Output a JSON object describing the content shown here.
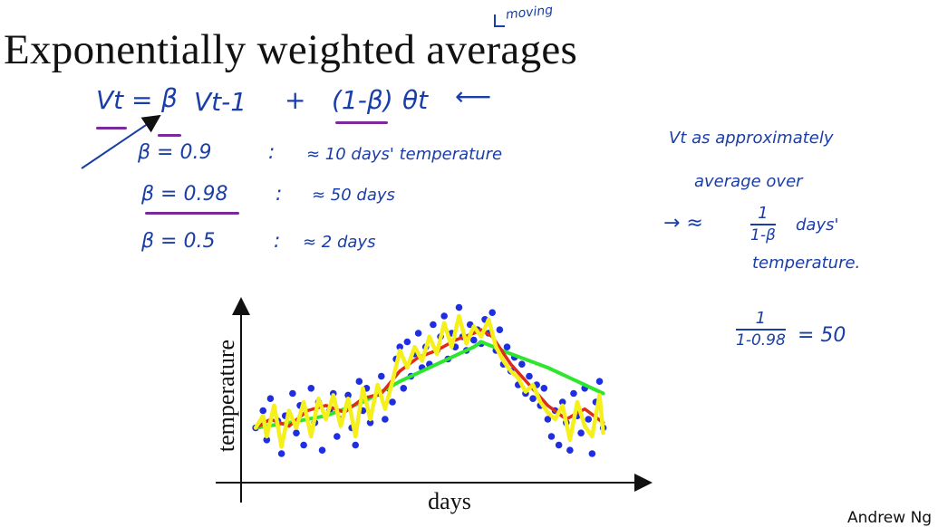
{
  "slide": {
    "title": "Exponentially weighted averages",
    "moving_annotation": "moving",
    "footer": "Andrew Ng"
  },
  "notes": {
    "equation": {
      "lhs": "Vt =",
      "beta": "β",
      "prev": "Vt-1",
      "plus": "+",
      "one_minus_beta": "(1-β)",
      "theta": "θt",
      "arrow": "⟵"
    },
    "betas": [
      {
        "beta": "β = 0.9",
        "colon": ":",
        "approx": "≈ 10 days' temperature"
      },
      {
        "beta": "β = 0.98",
        "colon": ":",
        "approx": "≈ 50 days"
      },
      {
        "beta": "β = 0.5",
        "colon": ":",
        "approx": "≈ 2 days"
      }
    ],
    "side": {
      "line1": "Vt as approximately",
      "line2": "average over",
      "arrow": "→ ≈",
      "frac_num": "1",
      "frac_den": "1-β",
      "days": "days'",
      "line4": "temperature.",
      "calc_num": "1",
      "calc_den": "1-0.98",
      "calc_result": "= 50"
    }
  },
  "chart_data": {
    "type": "scatter",
    "title": "",
    "xlabel": "days",
    "ylabel": "temperature",
    "grid": false,
    "legend": "none",
    "xlim": [
      0,
      100
    ],
    "ylim": [
      0,
      100
    ],
    "series": [
      {
        "style": "markers",
        "color": "#1f2ee0",
        "points": [
          [
            1,
            25
          ],
          [
            3,
            35
          ],
          [
            4,
            18
          ],
          [
            5,
            42
          ],
          [
            7,
            29
          ],
          [
            8,
            10
          ],
          [
            9,
            32
          ],
          [
            11,
            45
          ],
          [
            12,
            22
          ],
          [
            13,
            38
          ],
          [
            14,
            15
          ],
          [
            16,
            48
          ],
          [
            17,
            28
          ],
          [
            18,
            40
          ],
          [
            19,
            12
          ],
          [
            21,
            35
          ],
          [
            22,
            45
          ],
          [
            23,
            20
          ],
          [
            24,
            30
          ],
          [
            26,
            44
          ],
          [
            27,
            25
          ],
          [
            28,
            15
          ],
          [
            29,
            52
          ],
          [
            30,
            35
          ],
          [
            31,
            48
          ],
          [
            32,
            28
          ],
          [
            34,
            45
          ],
          [
            35,
            55
          ],
          [
            36,
            30
          ],
          [
            37,
            48
          ],
          [
            38,
            40
          ],
          [
            39,
            65
          ],
          [
            40,
            72
          ],
          [
            41,
            48
          ],
          [
            42,
            75
          ],
          [
            43,
            55
          ],
          [
            44,
            68
          ],
          [
            45,
            80
          ],
          [
            46,
            60
          ],
          [
            47,
            72
          ],
          [
            48,
            62
          ],
          [
            49,
            85
          ],
          [
            50,
            70
          ],
          [
            51,
            78
          ],
          [
            52,
            90
          ],
          [
            53,
            65
          ],
          [
            54,
            80
          ],
          [
            55,
            72
          ],
          [
            56,
            95
          ],
          [
            57,
            78
          ],
          [
            58,
            70
          ],
          [
            59,
            85
          ],
          [
            60,
            76
          ],
          [
            61,
            82
          ],
          [
            62,
            74
          ],
          [
            63,
            88
          ],
          [
            64,
            80
          ],
          [
            65,
            92
          ],
          [
            66,
            70
          ],
          [
            67,
            82
          ],
          [
            68,
            62
          ],
          [
            69,
            72
          ],
          [
            70,
            58
          ],
          [
            71,
            66
          ],
          [
            72,
            50
          ],
          [
            73,
            62
          ],
          [
            74,
            45
          ],
          [
            75,
            55
          ],
          [
            76,
            42
          ],
          [
            77,
            50
          ],
          [
            78,
            38
          ],
          [
            79,
            48
          ],
          [
            80,
            30
          ],
          [
            81,
            20
          ],
          [
            82,
            35
          ],
          [
            83,
            15
          ],
          [
            84,
            40
          ],
          [
            85,
            28
          ],
          [
            86,
            12
          ],
          [
            87,
            45
          ],
          [
            88,
            32
          ],
          [
            89,
            22
          ],
          [
            90,
            48
          ],
          [
            91,
            30
          ],
          [
            92,
            10
          ],
          [
            93,
            40
          ],
          [
            94,
            52
          ],
          [
            95,
            25
          ]
        ]
      },
      {
        "name": "",
        "style": "line",
        "color": "#2ee62e",
        "points": [
          [
            1,
            25
          ],
          [
            10,
            28
          ],
          [
            20,
            32
          ],
          [
            30,
            40
          ],
          [
            40,
            52
          ],
          [
            50,
            62
          ],
          [
            60,
            72
          ],
          [
            62,
            75
          ],
          [
            70,
            68
          ],
          [
            80,
            60
          ],
          [
            90,
            50
          ],
          [
            95,
            45
          ]
        ]
      },
      {
        "name": "",
        "style": "line",
        "color": "#e02a1a",
        "points": [
          [
            1,
            25
          ],
          [
            5,
            30
          ],
          [
            10,
            26
          ],
          [
            15,
            35
          ],
          [
            20,
            38
          ],
          [
            25,
            34
          ],
          [
            30,
            42
          ],
          [
            35,
            45
          ],
          [
            40,
            58
          ],
          [
            45,
            66
          ],
          [
            50,
            70
          ],
          [
            55,
            76
          ],
          [
            60,
            80
          ],
          [
            62,
            82
          ],
          [
            65,
            78
          ],
          [
            70,
            62
          ],
          [
            75,
            50
          ],
          [
            80,
            38
          ],
          [
            85,
            30
          ],
          [
            90,
            36
          ],
          [
            95,
            28
          ]
        ]
      },
      {
        "name": "",
        "style": "line",
        "color": "#f5ef1a",
        "points": [
          [
            1,
            25
          ],
          [
            3,
            32
          ],
          [
            4,
            20
          ],
          [
            6,
            38
          ],
          [
            8,
            14
          ],
          [
            10,
            35
          ],
          [
            12,
            25
          ],
          [
            14,
            40
          ],
          [
            16,
            20
          ],
          [
            18,
            42
          ],
          [
            20,
            30
          ],
          [
            22,
            44
          ],
          [
            24,
            26
          ],
          [
            26,
            42
          ],
          [
            28,
            20
          ],
          [
            30,
            48
          ],
          [
            32,
            30
          ],
          [
            34,
            50
          ],
          [
            36,
            36
          ],
          [
            38,
            52
          ],
          [
            40,
            70
          ],
          [
            42,
            60
          ],
          [
            44,
            72
          ],
          [
            46,
            64
          ],
          [
            48,
            78
          ],
          [
            50,
            68
          ],
          [
            52,
            86
          ],
          [
            54,
            72
          ],
          [
            56,
            90
          ],
          [
            58,
            74
          ],
          [
            60,
            84
          ],
          [
            62,
            78
          ],
          [
            64,
            88
          ],
          [
            66,
            72
          ],
          [
            68,
            64
          ],
          [
            70,
            58
          ],
          [
            72,
            54
          ],
          [
            74,
            46
          ],
          [
            76,
            50
          ],
          [
            78,
            40
          ],
          [
            80,
            34
          ],
          [
            82,
            30
          ],
          [
            84,
            38
          ],
          [
            86,
            18
          ],
          [
            88,
            40
          ],
          [
            90,
            26
          ],
          [
            92,
            20
          ],
          [
            94,
            44
          ],
          [
            95,
            22
          ]
        ]
      }
    ]
  }
}
